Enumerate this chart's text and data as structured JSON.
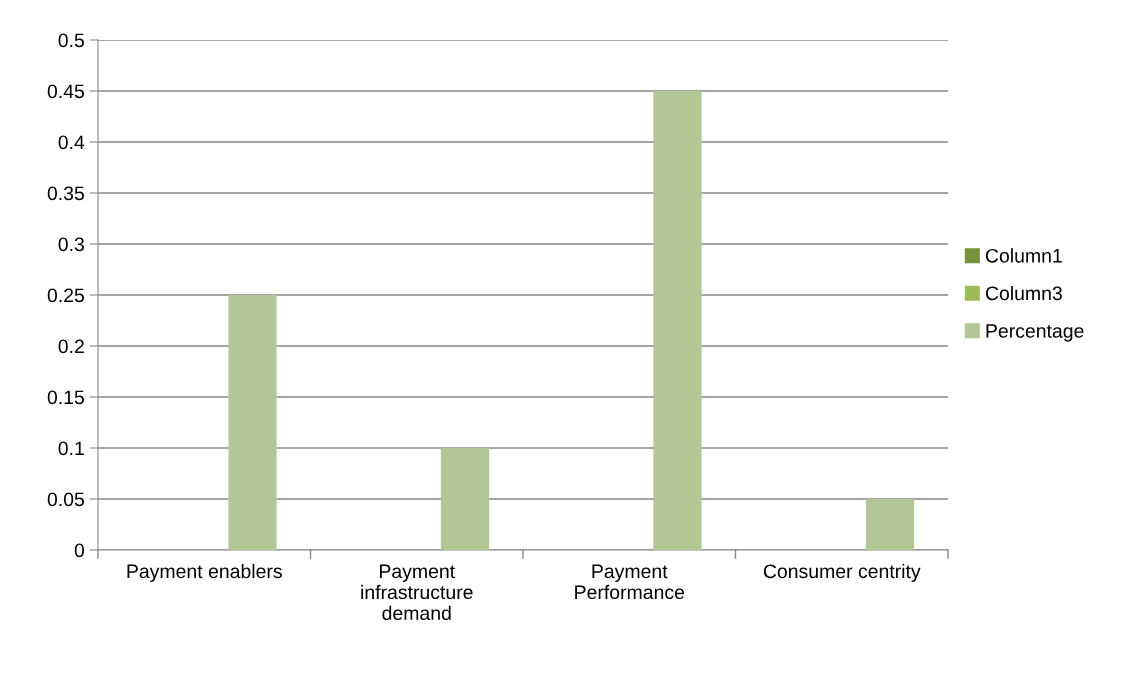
{
  "chart_data": {
    "type": "bar",
    "categories": [
      "Payment enablers",
      "Payment\ninfrastructure\ndemand",
      "Payment\nPerformance",
      "Consumer centrity"
    ],
    "series": [
      {
        "name": "Column1",
        "color": "#76923c",
        "values": [
          null,
          null,
          null,
          null
        ]
      },
      {
        "name": "Column3",
        "color": "#9bbb59",
        "values": [
          null,
          null,
          null,
          null
        ]
      },
      {
        "name": "Percentage",
        "color": "#b3c796",
        "values": [
          0.25,
          0.1,
          0.45,
          0.05
        ]
      }
    ],
    "ylim": [
      0,
      0.5
    ],
    "yticks": [
      0,
      0.05,
      0.1,
      0.15,
      0.2,
      0.25,
      0.3,
      0.35,
      0.4,
      0.45,
      0.5
    ],
    "grid": "y",
    "legend": "right"
  }
}
